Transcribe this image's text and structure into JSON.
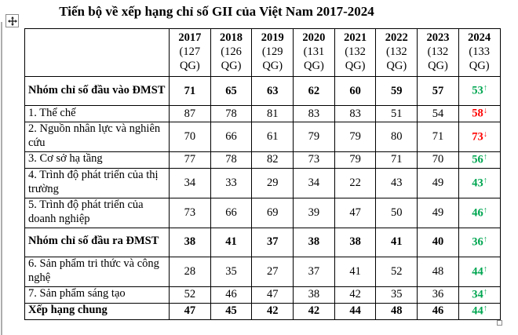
{
  "page": {
    "title": "Tiến bộ về xếp hạng chỉ số GII của Việt Nam 2017-2024"
  },
  "colors": {
    "trend_up": "#00a651",
    "trend_down": "#ff0000",
    "border": "#000000"
  },
  "icons": {
    "move_handle": "move-cross-icon",
    "resize_handle": "resize-square-icon",
    "up_arrow": "↑",
    "down_arrow": "↓"
  },
  "table": {
    "corner_label": "",
    "columns": [
      {
        "year": "2017",
        "scope": "(127 QG)"
      },
      {
        "year": "2018",
        "scope": "(126 QG)"
      },
      {
        "year": "2019",
        "scope": "(129 QG)"
      },
      {
        "year": "2020",
        "scope": "(131 QG)"
      },
      {
        "year": "2021",
        "scope": "(132 QG)"
      },
      {
        "year": "2022",
        "scope": "(132 QG)"
      },
      {
        "year": "2023",
        "scope": "(132 QG)"
      },
      {
        "year": "2024",
        "scope": "(133 QG)"
      }
    ],
    "rows": [
      {
        "label": "Nhóm chỉ số đầu vào ĐMST",
        "bold": true,
        "values": [
          "71",
          "65",
          "63",
          "62",
          "60",
          "59",
          "57"
        ],
        "y2024": {
          "value": "53",
          "trend": "up"
        }
      },
      {
        "label": "1. Thể chế",
        "bold": false,
        "values": [
          "87",
          "78",
          "81",
          "83",
          "83",
          "51",
          "54"
        ],
        "y2024": {
          "value": "58",
          "trend": "down"
        }
      },
      {
        "label": "2. Nguồn nhân lực và nghiên cứu",
        "bold": false,
        "values": [
          "70",
          "66",
          "61",
          "79",
          "79",
          "80",
          "71"
        ],
        "y2024": {
          "value": "73",
          "trend": "down"
        }
      },
      {
        "label": "3. Cơ sở hạ tầng",
        "bold": false,
        "values": [
          "77",
          "78",
          "82",
          "73",
          "79",
          "71",
          "70"
        ],
        "y2024": {
          "value": "56",
          "trend": "up"
        }
      },
      {
        "label": "4. Trình độ phát triển của thị trường",
        "bold": false,
        "values": [
          "34",
          "33",
          "29",
          "34",
          "22",
          "43",
          "49"
        ],
        "y2024": {
          "value": "43",
          "trend": "up"
        }
      },
      {
        "label": "5. Trình độ phát triển của doanh nghiệp",
        "bold": false,
        "values": [
          "73",
          "66",
          "69",
          "39",
          "47",
          "50",
          "49"
        ],
        "y2024": {
          "value": "46",
          "trend": "up"
        }
      },
      {
        "label": "Nhóm chỉ số đầu ra ĐMST",
        "bold": true,
        "values": [
          "38",
          "41",
          "37",
          "38",
          "38",
          "41",
          "40"
        ],
        "y2024": {
          "value": "36",
          "trend": "up"
        }
      },
      {
        "label": "6. Sản phẩm tri thức và công nghệ",
        "bold": false,
        "values": [
          "28",
          "35",
          "27",
          "37",
          "41",
          "52",
          "48"
        ],
        "y2024": {
          "value": "44",
          "trend": "up"
        }
      },
      {
        "label": "7. Sản phẩm sáng tạo",
        "bold": false,
        "values": [
          "52",
          "46",
          "47",
          "38",
          "42",
          "35",
          "36"
        ],
        "y2024": {
          "value": "34",
          "trend": "up"
        }
      },
      {
        "label": "Xếp hạng chung",
        "bold": true,
        "values": [
          "47",
          "45",
          "42",
          "42",
          "44",
          "48",
          "46"
        ],
        "y2024": {
          "value": "44",
          "trend": "up"
        }
      }
    ]
  }
}
